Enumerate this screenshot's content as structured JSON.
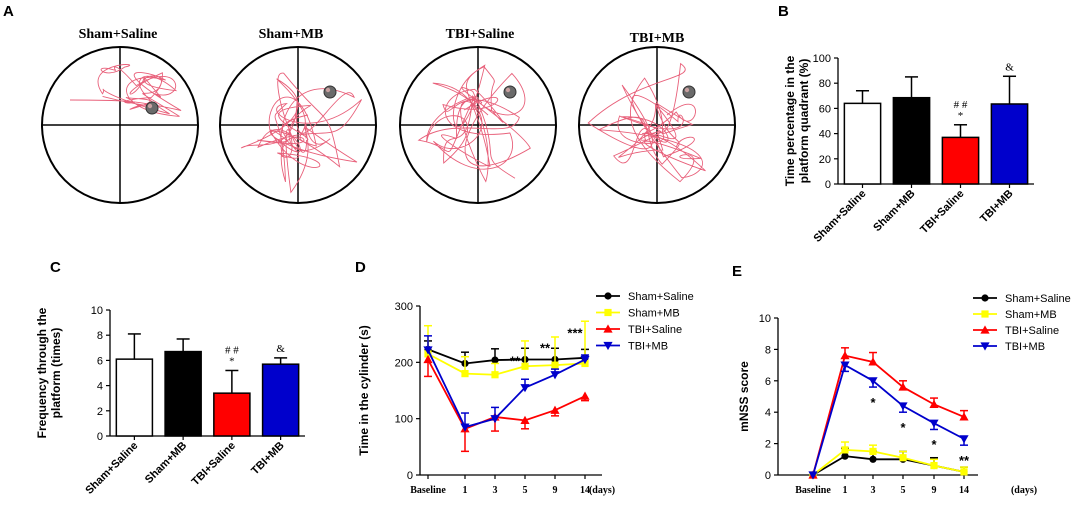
{
  "panels": {
    "A": {
      "letter": "A",
      "maze_titles": [
        "Sham+Saline",
        "Sham+MB",
        "TBI+Saline",
        "TBI+MB"
      ]
    },
    "B": {
      "letter": "B"
    },
    "C": {
      "letter": "C"
    },
    "D": {
      "letter": "D"
    },
    "E": {
      "letter": "E"
    }
  },
  "colors": {
    "sham_saline": "#ffffff",
    "sham_mb": "#000000",
    "tbi_saline": "#ff0000",
    "tbi_mb": "#0000cc",
    "line_sham_saline": "#000000",
    "line_sham_mb": "#ffff00",
    "line_tbi_saline": "#ff0000",
    "line_tbi_mb": "#0000cc",
    "track": "#e8607a"
  },
  "chart_data": [
    {
      "id": "B",
      "type": "bar",
      "ylabel": "Time percentage in the platform quadrant (%)",
      "ylabel_lines": [
        "Time percentage in the",
        "platform quadrant (%)"
      ],
      "ylim": [
        0,
        100
      ],
      "yticks": [
        "0",
        "20",
        "40",
        "60",
        "80",
        "100"
      ],
      "categories": [
        "Sham+Saline",
        "Sham+MB",
        "TBI+Saline",
        "TBI+MB"
      ],
      "values": [
        64,
        68.5,
        37,
        63.5
      ],
      "errors": [
        10,
        16.5,
        10,
        22
      ],
      "annotations": [
        "",
        "",
        "##\n*",
        "&"
      ]
    },
    {
      "id": "C",
      "type": "bar",
      "ylabel": "Frequency through the platform (times)",
      "ylabel_lines": [
        "Frequency through the",
        "platform (times)"
      ],
      "ylim": [
        0,
        10
      ],
      "yticks": [
        "0",
        "2",
        "4",
        "6",
        "8",
        "10"
      ],
      "categories": [
        "Sham+Saline",
        "Sham+MB",
        "TBI+Saline",
        "TBI+MB"
      ],
      "values": [
        6.1,
        6.7,
        3.4,
        5.7
      ],
      "errors": [
        2,
        1,
        1.8,
        0.5
      ],
      "annotations": [
        "",
        "",
        "##\n*",
        "&"
      ]
    },
    {
      "id": "D",
      "type": "line",
      "ylabel": "Time in the cylinder (s)",
      "ylim": [
        0,
        300
      ],
      "yticks": [
        "0",
        "100",
        "200",
        "300"
      ],
      "categories": [
        "Baseline",
        "1",
        "3",
        "5",
        "9",
        "14"
      ],
      "x_unit": "(days)",
      "series": [
        {
          "name": "Sham+Saline",
          "values": [
            223,
            198,
            204,
            205,
            205,
            208
          ],
          "errors": [
            15,
            20,
            20,
            20,
            20,
            15
          ]
        },
        {
          "name": "Sham+MB",
          "values": [
            215,
            180,
            178,
            193,
            195,
            198
          ],
          "errors": [
            50,
            30,
            20,
            45,
            50,
            75
          ]
        },
        {
          "name": "TBI+Saline",
          "values": [
            205,
            82,
            103,
            97,
            115,
            140
          ],
          "errors": [
            30,
            40,
            25,
            15,
            10,
            8
          ]
        },
        {
          "name": "TBI+MB",
          "values": [
            222,
            85,
            100,
            155,
            178,
            205
          ],
          "errors": [
            25,
            25,
            20,
            15,
            10,
            8
          ]
        }
      ],
      "annotations": [
        {
          "at": "5",
          "text": "**"
        },
        {
          "at": "9",
          "text": "**"
        },
        {
          "at": "14",
          "text": "***"
        }
      ]
    },
    {
      "id": "E",
      "type": "line",
      "ylabel": "mNSS score",
      "ylim": [
        0,
        10
      ],
      "yticks": [
        "0",
        "2",
        "4",
        "6",
        "8",
        "10"
      ],
      "categories": [
        "Baseline",
        "1",
        "3",
        "5",
        "9",
        "14"
      ],
      "x_unit": "(days)",
      "series": [
        {
          "name": "Sham+Saline",
          "values": [
            0,
            1.2,
            1.0,
            1.0,
            0.6,
            0.2
          ],
          "errors": [
            0,
            0.5,
            0.5,
            0.5,
            0.5,
            0.3
          ]
        },
        {
          "name": "Sham+MB",
          "values": [
            0,
            1.6,
            1.5,
            1.1,
            0.6,
            0.2
          ],
          "errors": [
            0,
            0.5,
            0.4,
            0.4,
            0.4,
            0.3
          ]
        },
        {
          "name": "TBI+Saline",
          "values": [
            0,
            7.6,
            7.2,
            5.6,
            4.5,
            3.7
          ],
          "errors": [
            0,
            0.5,
            0.6,
            0.4,
            0.4,
            0.4
          ]
        },
        {
          "name": "TBI+MB",
          "values": [
            0,
            7.0,
            6.0,
            4.4,
            3.3,
            2.3
          ],
          "errors": [
            0,
            0.4,
            0.4,
            0.4,
            0.4,
            0.4
          ]
        }
      ],
      "annotations": [
        {
          "at": "3",
          "text": "*"
        },
        {
          "at": "5",
          "text": "*"
        },
        {
          "at": "9",
          "text": "*"
        },
        {
          "at": "14",
          "text": "**"
        }
      ]
    }
  ]
}
